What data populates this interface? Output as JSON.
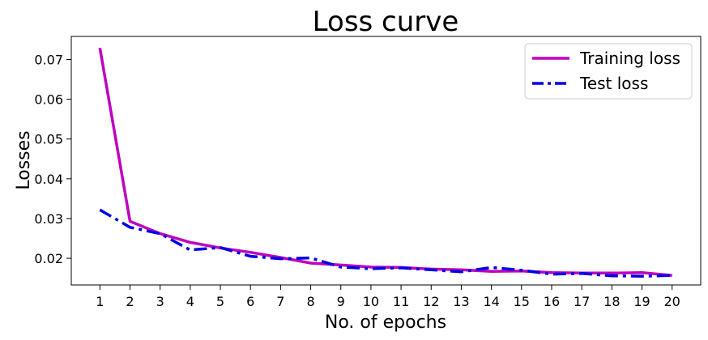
{
  "chart_data": {
    "type": "line",
    "title": "Loss curve",
    "xlabel": "No. of epochs",
    "ylabel": "Losses",
    "x": [
      1,
      2,
      3,
      4,
      5,
      6,
      7,
      8,
      9,
      10,
      11,
      12,
      13,
      14,
      15,
      16,
      17,
      18,
      19,
      20
    ],
    "xlim": [
      0.05,
      20.95
    ],
    "ylim": [
      0.0133,
      0.0758
    ],
    "yticks": [
      0.02,
      0.03,
      0.04,
      0.05,
      0.06,
      0.07
    ],
    "ytick_labels": [
      "0.02",
      "0.03",
      "0.04",
      "0.05",
      "0.06",
      "0.07"
    ],
    "grid": false,
    "legend_position": "top-right",
    "series": [
      {
        "name": "Training loss",
        "color": "#bf00bf",
        "style": "solid",
        "values": [
          0.0729,
          0.0293,
          0.0262,
          0.024,
          0.0226,
          0.0215,
          0.0202,
          0.0188,
          0.0183,
          0.0178,
          0.0177,
          0.0173,
          0.0171,
          0.0167,
          0.0168,
          0.0164,
          0.0163,
          0.0163,
          0.0164,
          0.0157
        ]
      },
      {
        "name": "Test loss",
        "color": "#0000e6",
        "style": "dashdot",
        "values": [
          0.0322,
          0.0278,
          0.0262,
          0.0221,
          0.0227,
          0.0205,
          0.0199,
          0.0201,
          0.0178,
          0.0174,
          0.0176,
          0.0171,
          0.0166,
          0.0177,
          0.017,
          0.016,
          0.0162,
          0.0156,
          0.0155,
          0.0157
        ]
      }
    ]
  }
}
